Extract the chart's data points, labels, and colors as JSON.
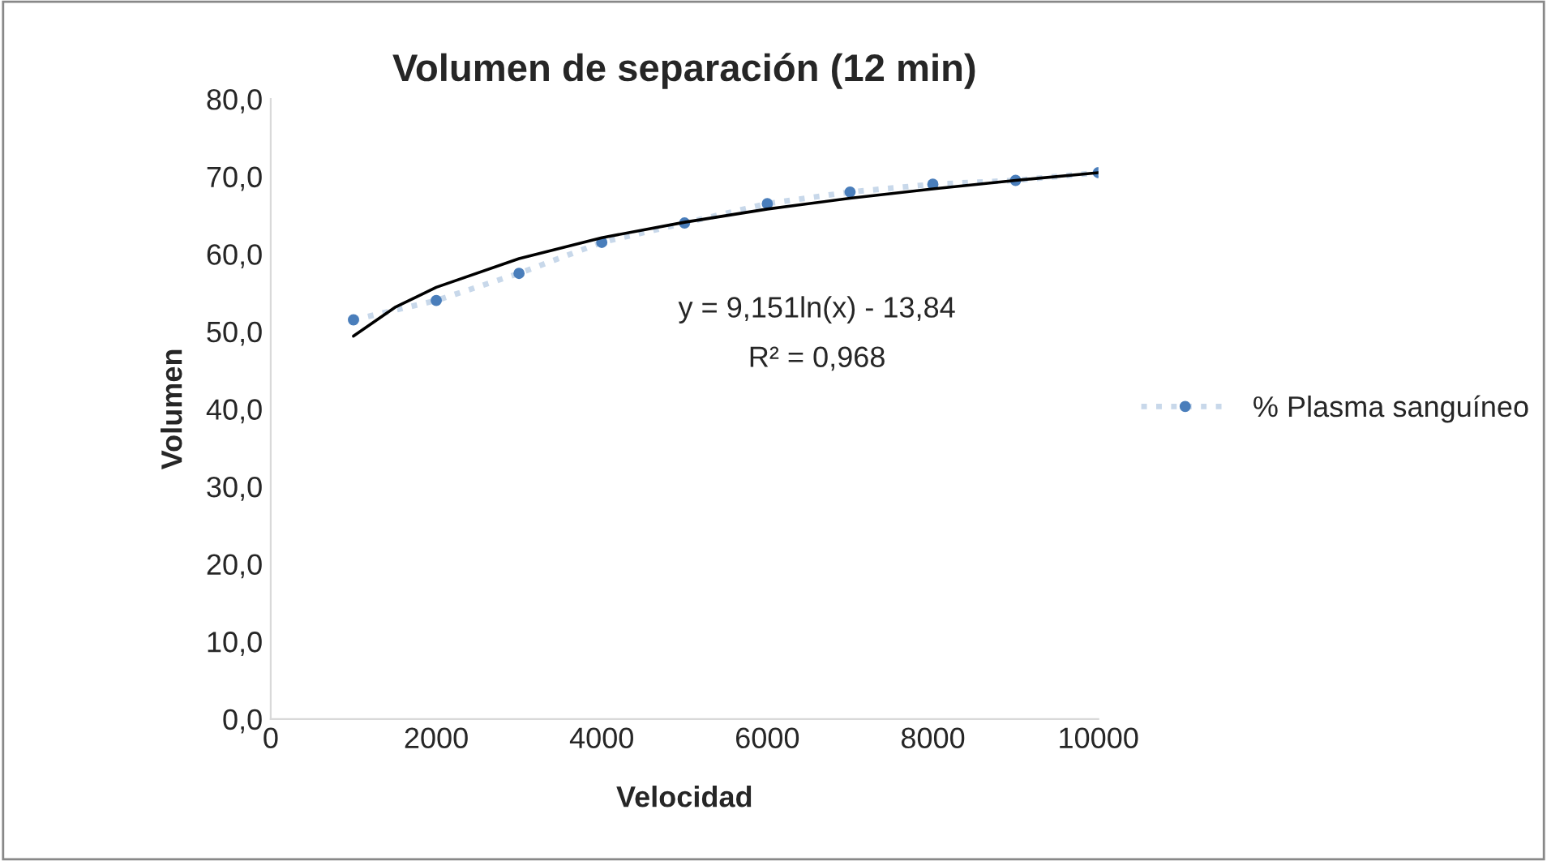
{
  "chart_data": {
    "type": "line",
    "title": "Volumen de separación (12 min)",
    "xlabel": "Velocidad",
    "ylabel": "Volumen",
    "xlim": [
      0,
      10000
    ],
    "xticks": [
      0,
      2000,
      4000,
      6000,
      8000,
      10000
    ],
    "ylim": [
      0,
      80
    ],
    "yticks": [
      {
        "value": 0,
        "label": "0,0"
      },
      {
        "value": 10,
        "label": "10,0"
      },
      {
        "value": 20,
        "label": "20,0"
      },
      {
        "value": 30,
        "label": "30,0"
      },
      {
        "value": 40,
        "label": "40,0"
      },
      {
        "value": 50,
        "label": "50,0"
      },
      {
        "value": 60,
        "label": "60,0"
      },
      {
        "value": 70,
        "label": "70,0"
      },
      {
        "value": 80,
        "label": "80,0"
      }
    ],
    "grid": false,
    "legend": "right",
    "marker": "circle",
    "series": [
      {
        "name": "% Plasma sanguíneo",
        "color": "#4a7ebb",
        "line_style": "dotted",
        "x": [
          1000,
          2000,
          3000,
          4000,
          5000,
          6000,
          7000,
          8000,
          9000,
          10000
        ],
        "values": [
          51.5,
          54,
          57.5,
          61.5,
          64,
          66.5,
          68,
          69,
          69.5,
          70.5
        ]
      },
      {
        "type": "line",
        "color": "#000000",
        "line_style": "solid",
        "marker": "none",
        "x": [
          1000,
          1500,
          2000,
          3000,
          4000,
          5000,
          6000,
          7000,
          8000,
          9000,
          10000
        ],
        "values": [
          49.4,
          53.1,
          55.7,
          59.4,
          62.1,
          64.1,
          65.8,
          67.2,
          68.4,
          69.5,
          70.5
        ]
      }
    ],
    "annotations": [
      "y = 9,151ln(x) - 13,84",
      "R² = 0,968"
    ]
  }
}
